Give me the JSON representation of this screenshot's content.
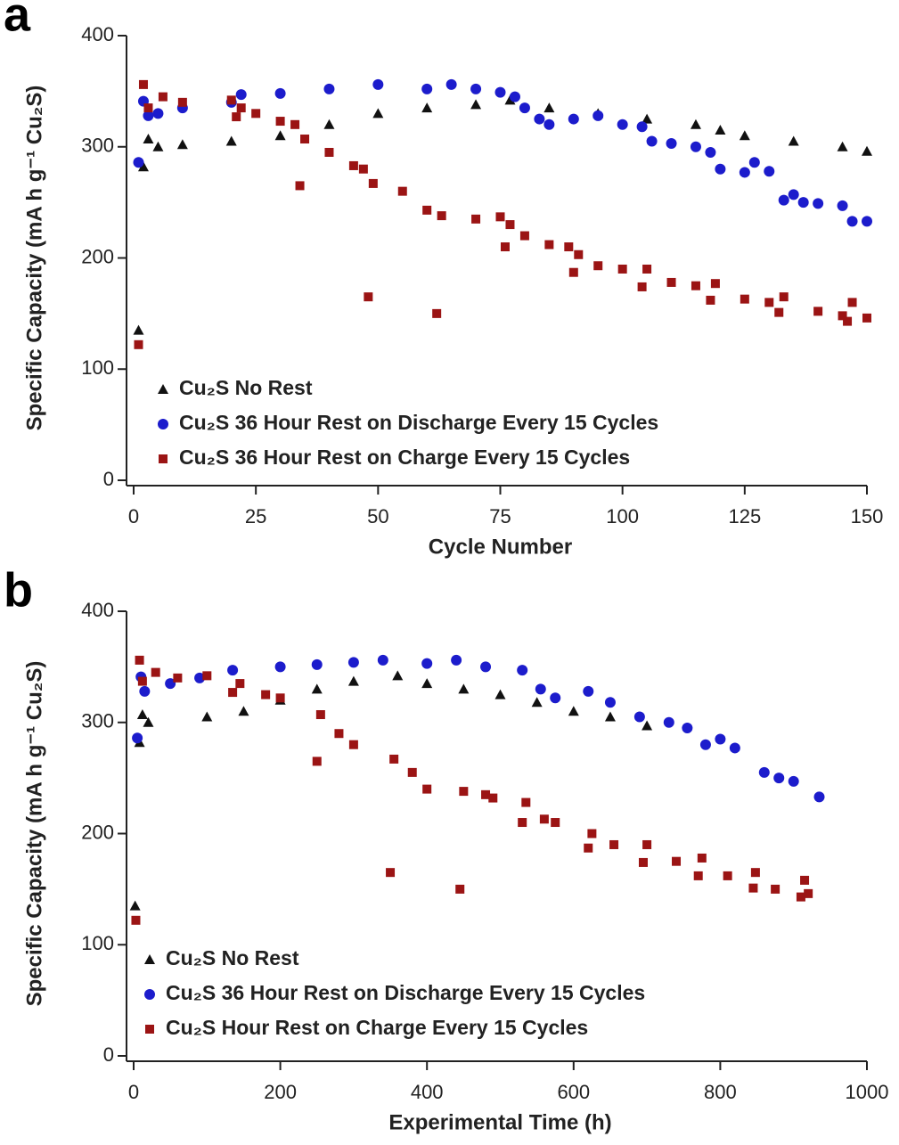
{
  "chart_data": [
    {
      "type": "scatter",
      "panel_label": "a",
      "xlabel": "Cycle Number",
      "ylabel": "Specific Capacity (mA h g⁻¹ Cu₂S)",
      "xlim": [
        0,
        150
      ],
      "xticks": [
        0,
        25,
        50,
        75,
        100,
        125,
        150
      ],
      "ylim": [
        0,
        400
      ],
      "yticks": [
        0,
        100,
        200,
        300,
        400
      ],
      "series": [
        {
          "name": "Cu₂S No Rest",
          "color": "#111111",
          "marker": "triangle",
          "x": [
            1,
            2,
            3,
            5,
            10,
            20,
            30,
            40,
            50,
            60,
            70,
            77,
            85,
            95,
            105,
            115,
            120,
            125,
            135,
            145,
            150
          ],
          "values": [
            135,
            282,
            307,
            300,
            302,
            305,
            310,
            320,
            330,
            335,
            338,
            342,
            335,
            330,
            325,
            320,
            315,
            310,
            305,
            300,
            296
          ]
        },
        {
          "name": "Cu₂S 36 Hour Rest on Discharge Every 15 Cycles",
          "color": "#1c1ccc",
          "marker": "circle",
          "x": [
            1,
            2,
            3,
            5,
            10,
            20,
            22,
            30,
            40,
            50,
            60,
            65,
            70,
            75,
            78,
            80,
            83,
            85,
            90,
            95,
            100,
            104,
            106,
            110,
            115,
            118,
            120,
            125,
            127,
            130,
            133,
            135,
            137,
            140,
            145,
            147,
            150
          ],
          "values": [
            286,
            341,
            328,
            330,
            335,
            340,
            347,
            348,
            352,
            356,
            352,
            356,
            352,
            349,
            345,
            335,
            325,
            320,
            325,
            328,
            320,
            318,
            305,
            303,
            300,
            295,
            280,
            277,
            286,
            278,
            252,
            257,
            250,
            249,
            247,
            233,
            233
          ]
        },
        {
          "name": "Cu₂S 36 Hour Rest on Charge Every 15 Cycles",
          "color": "#9b1414",
          "marker": "square",
          "x": [
            1,
            2,
            3,
            6,
            10,
            20,
            21,
            22,
            25,
            30,
            33,
            34,
            35,
            40,
            45,
            47,
            48,
            49,
            55,
            60,
            62,
            63,
            70,
            75,
            76,
            77,
            80,
            85,
            89,
            90,
            91,
            95,
            100,
            104,
            105,
            110,
            115,
            118,
            119,
            125,
            130,
            132,
            133,
            140,
            145,
            146,
            147,
            150
          ],
          "values": [
            122,
            356,
            335,
            345,
            340,
            342,
            327,
            335,
            330,
            323,
            320,
            265,
            307,
            295,
            283,
            280,
            165,
            267,
            260,
            243,
            150,
            238,
            235,
            237,
            210,
            230,
            220,
            212,
            210,
            187,
            203,
            193,
            190,
            174,
            190,
            178,
            175,
            162,
            177,
            163,
            160,
            151,
            165,
            152,
            148,
            143,
            160,
            146
          ]
        }
      ]
    },
    {
      "type": "scatter",
      "panel_label": "b",
      "xlabel": "Experimental Time (h)",
      "ylabel": "Specific Capacity (mA h g⁻¹ Cu₂S)",
      "xlim": [
        0,
        1000
      ],
      "xticks": [
        0,
        200,
        400,
        600,
        800,
        1000
      ],
      "ylim": [
        0,
        400
      ],
      "yticks": [
        0,
        100,
        200,
        300,
        400
      ],
      "series": [
        {
          "name": "Cu₂S No Rest",
          "color": "#111111",
          "marker": "triangle",
          "x": [
            2,
            8,
            12,
            20,
            100,
            150,
            200,
            250,
            300,
            360,
            400,
            450,
            500,
            550,
            600,
            650,
            700
          ],
          "values": [
            135,
            282,
            307,
            300,
            305,
            310,
            320,
            330,
            337,
            342,
            335,
            330,
            325,
            318,
            310,
            305,
            297
          ]
        },
        {
          "name": "Cu₂S 36 Hour Rest on Discharge Every 15 Cycles",
          "color": "#1c1ccc",
          "marker": "circle",
          "x": [
            5,
            10,
            15,
            50,
            90,
            135,
            200,
            250,
            300,
            340,
            400,
            440,
            480,
            530,
            555,
            575,
            620,
            650,
            690,
            730,
            755,
            780,
            800,
            820,
            860,
            880,
            900,
            935
          ],
          "values": [
            286,
            341,
            328,
            335,
            340,
            347,
            350,
            352,
            354,
            356,
            353,
            356,
            350,
            347,
            330,
            322,
            328,
            318,
            305,
            300,
            295,
            280,
            285,
            277,
            255,
            250,
            247,
            233
          ]
        },
        {
          "name": "Cu₂S Hour Rest on Charge Every 15 Cycles",
          "color": "#9b1414",
          "marker": "square",
          "x": [
            3,
            8,
            12,
            30,
            60,
            100,
            135,
            145,
            180,
            200,
            250,
            255,
            280,
            300,
            350,
            355,
            380,
            400,
            445,
            450,
            480,
            490,
            530,
            535,
            560,
            575,
            620,
            625,
            655,
            695,
            700,
            740,
            770,
            775,
            810,
            845,
            848,
            875,
            910,
            915,
            920
          ],
          "values": [
            122,
            356,
            337,
            345,
            340,
            342,
            327,
            335,
            325,
            322,
            265,
            307,
            290,
            280,
            165,
            267,
            255,
            240,
            150,
            238,
            235,
            232,
            210,
            228,
            213,
            210,
            187,
            200,
            190,
            174,
            190,
            175,
            162,
            178,
            162,
            151,
            165,
            150,
            143,
            158,
            146
          ]
        }
      ]
    }
  ]
}
